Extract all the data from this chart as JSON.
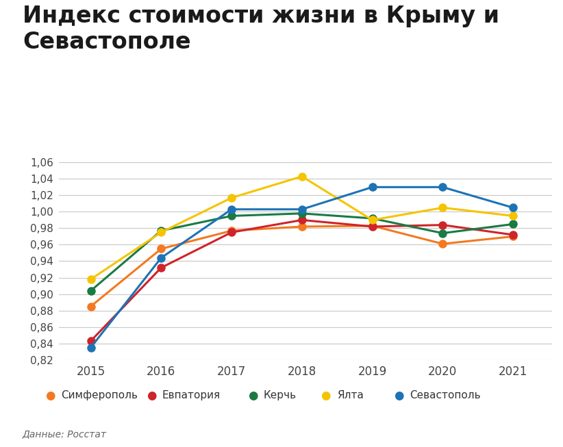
{
  "title": "Индекс стоимости жизни в Крыму и\nСевастополе",
  "source_text": "Данные: Росстат",
  "years": [
    2015,
    2016,
    2017,
    2018,
    2019,
    2020,
    2021
  ],
  "series": [
    {
      "name": "Симферополь",
      "values": [
        0.885,
        0.955,
        0.977,
        0.982,
        0.983,
        0.961,
        0.97
      ],
      "color": "#F47920"
    },
    {
      "name": "Евпатория",
      "values": [
        0.843,
        0.932,
        0.975,
        0.99,
        0.982,
        0.984,
        0.972
      ],
      "color": "#D0232A"
    },
    {
      "name": "Керчь",
      "values": [
        0.904,
        0.977,
        0.995,
        0.998,
        0.992,
        0.974,
        0.985
      ],
      "color": "#1A7A44"
    },
    {
      "name": "Ялта",
      "values": [
        0.918,
        0.975,
        1.017,
        1.043,
        0.99,
        1.005,
        0.995
      ],
      "color": "#F5C400"
    },
    {
      "name": "Севастополь",
      "values": [
        0.835,
        0.944,
        1.003,
        1.003,
        1.03,
        1.03,
        1.005
      ],
      "color": "#1D73B5"
    }
  ],
  "ylim": [
    0.82,
    1.07
  ],
  "yticks": [
    0.82,
    0.84,
    0.86,
    0.88,
    0.9,
    0.92,
    0.94,
    0.96,
    0.98,
    1.0,
    1.02,
    1.04,
    1.06
  ],
  "background_color": "#ffffff",
  "grid_color": "#c8c8c8",
  "title_fontsize": 24,
  "axis_label_fontsize": 11,
  "legend_fontsize": 11,
  "source_fontsize": 10,
  "marker_size": 8,
  "line_width": 2.2,
  "sep_color": "#bbbbbb"
}
